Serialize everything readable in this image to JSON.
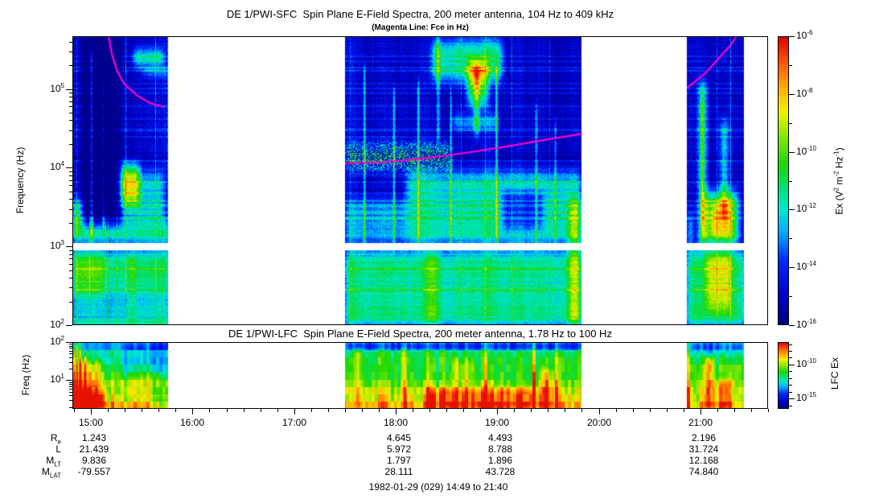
{
  "figure": {
    "footer": "1982-01-29 (029) 14:49 to 21:40"
  },
  "colors": {
    "magenta_line": "#ff00cc",
    "frame": "#000000",
    "colormap_stops": [
      [
        0.0,
        "#000080"
      ],
      [
        0.1,
        "#0000c8"
      ],
      [
        0.22,
        "#0028ff"
      ],
      [
        0.32,
        "#00a8ff"
      ],
      [
        0.4,
        "#00e8d0"
      ],
      [
        0.48,
        "#00e070"
      ],
      [
        0.56,
        "#20d800"
      ],
      [
        0.66,
        "#90e800"
      ],
      [
        0.74,
        "#f0f000"
      ],
      [
        0.82,
        "#ffb000"
      ],
      [
        0.9,
        "#ff6000"
      ],
      [
        1.0,
        "#e00000"
      ]
    ]
  },
  "time_axis": {
    "labels": [
      "15:00",
      "16:00",
      "17:00",
      "18:00",
      "19:00",
      "20:00",
      "21:00"
    ],
    "label_hours": [
      15,
      16,
      17,
      18,
      19,
      20,
      21
    ],
    "start_hhmm": "14:49",
    "end_hhmm": "21:40",
    "start_hours": 14.81667,
    "end_hours": 21.66667,
    "minor_tick_minutes": 10
  },
  "ephemeris": {
    "column_hours": [
      15,
      18,
      19,
      21
    ],
    "rows": [
      {
        "base": "R",
        "sub": "e",
        "values": [
          "1.243",
          "4.645",
          "4.493",
          "2.196"
        ]
      },
      {
        "base": "L",
        "sub": "",
        "values": [
          "21.439",
          "5.972",
          "8.788",
          "31.724"
        ]
      },
      {
        "base": "M",
        "sub": "LT",
        "values": [
          "9.836",
          "1.797",
          "1.896",
          "12.168"
        ]
      },
      {
        "base": "M",
        "sub": "LAT",
        "values": [
          "-79.557",
          "28.111",
          "43.728",
          "74.840"
        ]
      }
    ]
  },
  "chart_data": [
    {
      "type": "heatmap",
      "instrument": "SFC",
      "title": "DE 1/PWI-SFC  Spin Plane E-Field Spectra, 200 meter antenna, 104 Hz to 409 kHz",
      "subtitle": "(Magenta Line: Fce in Hz)",
      "ylabel": "Frequency (Hz)",
      "y_scale": "log",
      "y_range_hz": [
        104,
        468000
      ],
      "y_major_tick_exponents": [
        5,
        4,
        3,
        2
      ],
      "blank_band_log_hz": [
        2.955,
        3.045
      ],
      "colorbar": {
        "label_parts": [
          {
            "t": "Ex (V"
          },
          {
            "t": "2",
            "sup": 1
          },
          {
            "t": " m"
          },
          {
            "t": "-2",
            "sup": 1
          },
          {
            "t": " Hz"
          },
          {
            "t": "-1",
            "sup": 1
          },
          {
            "t": ")"
          }
        ],
        "major_tick_exponents": [
          -6,
          -8,
          -10,
          -12,
          -14,
          -16
        ],
        "minor_tick_exponents": [
          -7,
          -9,
          -11,
          -13,
          -15
        ],
        "range_exponents": [
          -6,
          -16
        ]
      },
      "data_segments_hours": [
        [
          14.81667,
          15.759
        ],
        [
          17.503,
          19.833
        ],
        [
          20.868,
          21.43
        ]
      ],
      "fce_line_color": "#ff00cc",
      "fce_line_hours_loghz": [
        [
          [
            15.173,
            5.67
          ],
          [
            15.21,
            5.42
          ],
          [
            15.26,
            5.22
          ],
          [
            15.33,
            5.06
          ],
          [
            15.45,
            4.92
          ],
          [
            15.58,
            4.82
          ],
          [
            15.72,
            4.77
          ]
        ],
        [
          [
            17.51,
            4.055
          ],
          [
            17.9,
            4.07
          ],
          [
            18.3,
            4.12
          ],
          [
            18.7,
            4.19
          ],
          [
            19.1,
            4.27
          ],
          [
            19.5,
            4.36
          ],
          [
            19.83,
            4.43
          ]
        ],
        [
          [
            20.875,
            5.02
          ],
          [
            21.05,
            5.2
          ],
          [
            21.2,
            5.42
          ],
          [
            21.3,
            5.56
          ],
          [
            21.355,
            5.67
          ]
        ]
      ],
      "features": [
        {
          "t0": 14.82,
          "t1": 15.76,
          "f0": 2.45,
          "f1": 2.95,
          "a": 0.32
        },
        {
          "t0": 14.82,
          "t1": 15.13,
          "f0": 2.35,
          "f1": 2.95,
          "a": 0.13
        },
        {
          "t0": 14.82,
          "t1": 15.76,
          "f0": 2.0,
          "f1": 2.45,
          "a": 0.22
        },
        {
          "t0": 14.82,
          "t1": 15.76,
          "f0": 2.0,
          "f1": 2.07,
          "a": 0.15
        },
        {
          "t0": 14.82,
          "t1": 15.76,
          "f0": 3.04,
          "f1": 3.3,
          "a": 0.3
        },
        {
          "t0": 14.82,
          "t1": 14.91,
          "f0": 3.2,
          "f1": 3.6,
          "a": 0.33
        },
        {
          "t0": 14.92,
          "t1": 15.28,
          "f0": 3.3,
          "f1": 5.67,
          "a": -0.17
        },
        {
          "t0": 14.97,
          "t1": 15.19,
          "f0": 3.4,
          "f1": 5.45,
          "a": -0.12
        },
        {
          "t0": 14.99,
          "t1": 15.015,
          "f0": 3.1,
          "f1": 5.5,
          "a": 0.38
        },
        {
          "t0": 15.11,
          "t1": 15.13,
          "f0": 3.2,
          "f1": 5.2,
          "a": 0.3
        },
        {
          "t0": 15.28,
          "t1": 15.47,
          "f0": 3.55,
          "f1": 4.05,
          "a": 0.42
        },
        {
          "t0": 15.31,
          "t1": 15.71,
          "f0": 3.3,
          "f1": 3.95,
          "a": 0.25
        },
        {
          "t0": 15.41,
          "t1": 15.71,
          "f0": 5.3,
          "f1": 5.5,
          "a": 0.3
        },
        {
          "t0": 15.5,
          "t1": 15.76,
          "f0": 5.15,
          "f1": 5.28,
          "a": 0.15
        },
        {
          "t0": 15.37,
          "t1": 15.43,
          "f0": 2.0,
          "f1": 2.95,
          "a": 0.12
        },
        {
          "t0": 17.51,
          "t1": 19.83,
          "f0": 2.0,
          "f1": 2.95,
          "a": 0.3
        },
        {
          "t0": 17.51,
          "t1": 18.1,
          "f0": 3.04,
          "f1": 3.6,
          "a": 0.18
        },
        {
          "t0": 18.1,
          "t1": 19.82,
          "f0": 3.04,
          "f1": 3.95,
          "a": 0.3
        },
        {
          "t0": 18.35,
          "t1": 19.05,
          "f0": 5.1,
          "f1": 5.62,
          "a": 0.33
        },
        {
          "t0": 18.7,
          "t1": 18.9,
          "f0": 4.8,
          "f1": 5.35,
          "a": 0.38
        },
        {
          "t0": 18.77,
          "t1": 18.82,
          "f0": 4.4,
          "f1": 5.3,
          "a": 0.28
        },
        {
          "t0": 18.55,
          "t1": 19.0,
          "f0": 4.5,
          "f1": 4.67,
          "a": 0.2
        },
        {
          "t0": 17.51,
          "t1": 18.55,
          "f0": 3.98,
          "f1": 4.3,
          "a": 0.24,
          "sp": 1
        },
        {
          "t0": 19.05,
          "t1": 19.45,
          "f0": 3.2,
          "f1": 3.7,
          "a": -0.22
        },
        {
          "t0": 19.7,
          "t1": 19.82,
          "f0": 2.0,
          "f1": 3.6,
          "a": 0.25
        },
        {
          "t0": 17.68,
          "t1": 17.7,
          "f0": 3.0,
          "f1": 5.3,
          "a": 0.3
        },
        {
          "t0": 17.97,
          "t1": 17.99,
          "f0": 3.0,
          "f1": 5.0,
          "a": 0.26
        },
        {
          "t0": 18.21,
          "t1": 18.23,
          "f0": 3.0,
          "f1": 5.1,
          "a": 0.3
        },
        {
          "t0": 18.4,
          "t1": 18.43,
          "f0": 4.3,
          "f1": 5.67,
          "a": 0.25
        },
        {
          "t0": 18.53,
          "t1": 18.55,
          "f0": 3.0,
          "f1": 5.0,
          "a": 0.26
        },
        {
          "t0": 18.98,
          "t1": 19.0,
          "f0": 3.0,
          "f1": 5.3,
          "a": 0.3
        },
        {
          "t0": 19.37,
          "t1": 19.39,
          "f0": 3.0,
          "f1": 4.8,
          "a": 0.24
        },
        {
          "t0": 19.56,
          "t1": 19.58,
          "f0": 3.0,
          "f1": 4.6,
          "a": 0.22
        },
        {
          "t0": 18.3,
          "t1": 18.42,
          "f0": 2.0,
          "f1": 2.95,
          "a": 0.15
        },
        {
          "t0": 20.87,
          "t1": 21.43,
          "f0": 2.0,
          "f1": 2.95,
          "a": 0.32
        },
        {
          "t0": 21.05,
          "t1": 21.3,
          "f0": 2.2,
          "f1": 2.95,
          "a": 0.25
        },
        {
          "t0": 20.98,
          "t1": 21.06,
          "f0": 3.0,
          "f1": 5.1,
          "a": 0.3
        },
        {
          "t0": 21.0,
          "t1": 21.03,
          "f0": 3.2,
          "f1": 4.9,
          "a": 0.2
        },
        {
          "t0": 21.19,
          "t1": 21.27,
          "f0": 3.4,
          "f1": 4.6,
          "a": 0.25
        },
        {
          "t0": 21.02,
          "t1": 21.37,
          "f0": 3.04,
          "f1": 3.7,
          "a": 0.4
        },
        {
          "t0": 21.1,
          "t1": 21.3,
          "f0": 3.1,
          "f1": 3.55,
          "a": 0.25
        },
        {
          "t0": 20.87,
          "t1": 20.93,
          "f0": 2.95,
          "f1": 3.4,
          "a": 0.15
        }
      ]
    },
    {
      "type": "heatmap",
      "instrument": "LFC",
      "title": "DE 1/PWI-LFC  Spin Plane E-Field Spectra, 200 meter antenna, 1.78 Hz to 100 Hz",
      "ylabel": "Freq (Hz)",
      "y_scale": "log",
      "y_range_hz": [
        1.78,
        100
      ],
      "y_major_tick_exponents": [
        2,
        1
      ],
      "colorbar": {
        "label": "LFC Ex",
        "major_tick_exponents": [
          -10,
          -15
        ],
        "minor_tick_exponents": [
          -7,
          -8,
          -9,
          -11,
          -12,
          -13,
          -14,
          -16
        ]
      },
      "data_segments_hours": [
        [
          14.81667,
          15.759
        ],
        [
          17.503,
          19.833
        ],
        [
          20.868,
          21.43
        ]
      ],
      "features": [
        {
          "t0": 14.84,
          "t1": 15.12,
          "f0": 0.25,
          "f1": 1.55,
          "a": 0.22
        },
        {
          "t0": 14.85,
          "t1": 14.867,
          "f0": 0.25,
          "f1": 2.0,
          "a": 0.38
        },
        {
          "t0": 14.88,
          "t1": 14.9,
          "f0": 0.25,
          "f1": 1.9,
          "a": 0.32
        },
        {
          "t0": 14.93,
          "t1": 14.95,
          "f0": 0.25,
          "f1": 1.7,
          "a": 0.25
        },
        {
          "t0": 14.84,
          "t1": 15.16,
          "f0": 0.25,
          "f1": 0.8,
          "a": 0.18
        },
        {
          "t0": 15.3,
          "t1": 15.76,
          "f0": 1.1,
          "f1": 2.0,
          "a": -0.13
        },
        {
          "t0": 15.3,
          "t1": 15.76,
          "f0": 0.25,
          "f1": 0.6,
          "a": -0.08
        },
        {
          "t0": 17.51,
          "t1": 19.83,
          "f0": 1.8,
          "f1": 2.0,
          "a": -0.16
        },
        {
          "t0": 18.3,
          "t1": 19.4,
          "f0": 0.25,
          "f1": 0.8,
          "a": 0.2
        },
        {
          "t0": 19.42,
          "t1": 19.55,
          "f0": 0.25,
          "f1": 1.3,
          "a": 0.22
        },
        {
          "t0": 18.55,
          "t1": 18.75,
          "f0": 0.9,
          "f1": 1.5,
          "a": 0.13
        },
        {
          "t0": 17.6,
          "t1": 17.66,
          "f0": 0.25,
          "f1": 1.8,
          "a": 0.18
        },
        {
          "t0": 18.05,
          "t1": 18.1,
          "f0": 0.25,
          "f1": 1.9,
          "a": 0.18
        },
        {
          "t0": 20.88,
          "t1": 21.43,
          "f0": 1.75,
          "f1": 2.0,
          "a": -0.14
        },
        {
          "t0": 21.04,
          "t1": 21.12,
          "f0": 0.25,
          "f1": 1.6,
          "a": 0.33
        },
        {
          "t0": 21.15,
          "t1": 21.3,
          "f0": 0.25,
          "f1": 1.0,
          "a": 0.18
        },
        {
          "t0": 20.88,
          "t1": 20.95,
          "f0": 0.25,
          "f1": 2.0,
          "a": -0.05
        }
      ]
    }
  ]
}
